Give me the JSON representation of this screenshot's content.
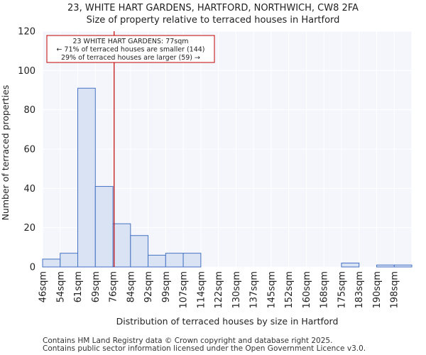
{
  "chart_data": {
    "type": "bar",
    "title": "23, WHITE HART GARDENS, HARTFORD, NORTHWICH, CW8 2FA",
    "subtitle": "Size of property relative to terraced houses in Hartford",
    "xlabel": "Distribution of terraced houses by size in Hartford",
    "ylabel": "Number of terraced properties",
    "ylim": [
      0,
      120
    ],
    "yticks": [
      0,
      20,
      40,
      60,
      80,
      100,
      120
    ],
    "categories": [
      "46sqm",
      "54sqm",
      "61sqm",
      "69sqm",
      "76sqm",
      "84sqm",
      "92sqm",
      "99sqm",
      "107sqm",
      "114sqm",
      "122sqm",
      "130sqm",
      "137sqm",
      "145sqm",
      "152sqm",
      "160sqm",
      "168sqm",
      "175sqm",
      "183sqm",
      "190sqm",
      "198sqm"
    ],
    "values": [
      4,
      7,
      91,
      41,
      22,
      16,
      6,
      7,
      7,
      0,
      0,
      0,
      0,
      0,
      0,
      0,
      0,
      2,
      0,
      1,
      1
    ],
    "property_marker": {
      "value": 77,
      "unit": "sqm"
    },
    "annotation": [
      "23 WHITE HART GARDENS: 77sqm",
      "← 71% of terraced houses are smaller (144)",
      "29% of terraced houses are larger (59) →"
    ],
    "colors": {
      "bar_fill": "#dae3f3",
      "bar_edge": "#4472c4",
      "marker": "#c00000",
      "plot_bg": "#f4f6fc",
      "grid": "#ffffff"
    }
  },
  "footer": {
    "line1": "Contains HM Land Registry data © Crown copyright and database right 2025.",
    "line2": "Contains public sector information licensed under the Open Government Licence v3.0."
  }
}
